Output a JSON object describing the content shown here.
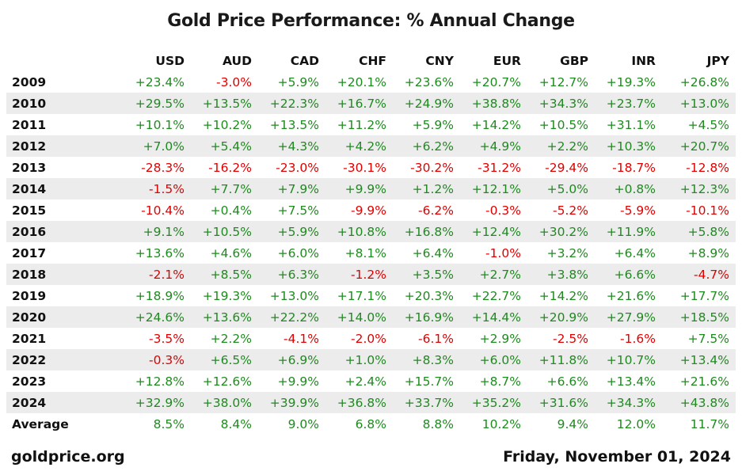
{
  "colors": {
    "positive": "#1f8a1f",
    "negative": "#e00000",
    "row_shade": "#ececec"
  },
  "chart_data": {
    "type": "table",
    "title": "Gold Price Performance: % Annual Change",
    "columns": [
      "USD",
      "AUD",
      "CAD",
      "CHF",
      "CNY",
      "EUR",
      "GBP",
      "INR",
      "JPY"
    ],
    "rows": [
      {
        "label": "2009",
        "values": [
          "+23.4%",
          "-3.0%",
          "+5.9%",
          "+20.1%",
          "+23.6%",
          "+20.7%",
          "+12.7%",
          "+19.3%",
          "+26.8%"
        ]
      },
      {
        "label": "2010",
        "values": [
          "+29.5%",
          "+13.5%",
          "+22.3%",
          "+16.7%",
          "+24.9%",
          "+38.8%",
          "+34.3%",
          "+23.7%",
          "+13.0%"
        ]
      },
      {
        "label": "2011",
        "values": [
          "+10.1%",
          "+10.2%",
          "+13.5%",
          "+11.2%",
          "+5.9%",
          "+14.2%",
          "+10.5%",
          "+31.1%",
          "+4.5%"
        ]
      },
      {
        "label": "2012",
        "values": [
          "+7.0%",
          "+5.4%",
          "+4.3%",
          "+4.2%",
          "+6.2%",
          "+4.9%",
          "+2.2%",
          "+10.3%",
          "+20.7%"
        ]
      },
      {
        "label": "2013",
        "values": [
          "-28.3%",
          "-16.2%",
          "-23.0%",
          "-30.1%",
          "-30.2%",
          "-31.2%",
          "-29.4%",
          "-18.7%",
          "-12.8%"
        ]
      },
      {
        "label": "2014",
        "values": [
          "-1.5%",
          "+7.7%",
          "+7.9%",
          "+9.9%",
          "+1.2%",
          "+12.1%",
          "+5.0%",
          "+0.8%",
          "+12.3%"
        ]
      },
      {
        "label": "2015",
        "values": [
          "-10.4%",
          "+0.4%",
          "+7.5%",
          "-9.9%",
          "-6.2%",
          "-0.3%",
          "-5.2%",
          "-5.9%",
          "-10.1%"
        ]
      },
      {
        "label": "2016",
        "values": [
          "+9.1%",
          "+10.5%",
          "+5.9%",
          "+10.8%",
          "+16.8%",
          "+12.4%",
          "+30.2%",
          "+11.9%",
          "+5.8%"
        ]
      },
      {
        "label": "2017",
        "values": [
          "+13.6%",
          "+4.6%",
          "+6.0%",
          "+8.1%",
          "+6.4%",
          "-1.0%",
          "+3.2%",
          "+6.4%",
          "+8.9%"
        ]
      },
      {
        "label": "2018",
        "values": [
          "-2.1%",
          "+8.5%",
          "+6.3%",
          "-1.2%",
          "+3.5%",
          "+2.7%",
          "+3.8%",
          "+6.6%",
          "-4.7%"
        ]
      },
      {
        "label": "2019",
        "values": [
          "+18.9%",
          "+19.3%",
          "+13.0%",
          "+17.1%",
          "+20.3%",
          "+22.7%",
          "+14.2%",
          "+21.6%",
          "+17.7%"
        ]
      },
      {
        "label": "2020",
        "values": [
          "+24.6%",
          "+13.6%",
          "+22.2%",
          "+14.0%",
          "+16.9%",
          "+14.4%",
          "+20.9%",
          "+27.9%",
          "+18.5%"
        ]
      },
      {
        "label": "2021",
        "values": [
          "-3.5%",
          "+2.2%",
          "-4.1%",
          "-2.0%",
          "-6.1%",
          "+2.9%",
          "-2.5%",
          "-1.6%",
          "+7.5%"
        ]
      },
      {
        "label": "2022",
        "values": [
          "-0.3%",
          "+6.5%",
          "+6.9%",
          "+1.0%",
          "+8.3%",
          "+6.0%",
          "+11.8%",
          "+10.7%",
          "+13.4%"
        ]
      },
      {
        "label": "2023",
        "values": [
          "+12.8%",
          "+12.6%",
          "+9.9%",
          "+2.4%",
          "+15.7%",
          "+8.7%",
          "+6.6%",
          "+13.4%",
          "+21.6%"
        ]
      },
      {
        "label": "2024",
        "values": [
          "+32.9%",
          "+38.0%",
          "+39.9%",
          "+36.8%",
          "+33.7%",
          "+35.2%",
          "+31.6%",
          "+34.3%",
          "+43.8%"
        ]
      },
      {
        "label": "Average",
        "values": [
          "8.5%",
          "8.4%",
          "9.0%",
          "6.8%",
          "8.8%",
          "10.2%",
          "9.4%",
          "12.0%",
          "11.7%"
        ]
      }
    ]
  },
  "footer": {
    "source": "goldprice.org",
    "date": "Friday, November 01, 2024"
  }
}
